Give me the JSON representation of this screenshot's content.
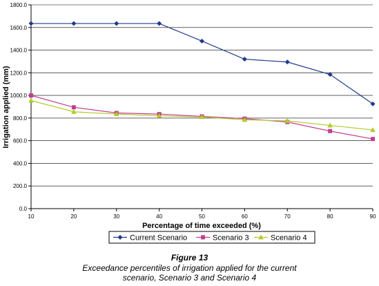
{
  "chart_data": {
    "type": "line",
    "title": "",
    "xlabel": "Percentage of time exceeded (%)",
    "ylabel": "Irrigation applied (mm)",
    "x": [
      10,
      20,
      30,
      40,
      50,
      60,
      70,
      80,
      90
    ],
    "xlim": [
      10,
      90
    ],
    "ylim": [
      0,
      1800
    ],
    "yticks": [
      "0.0",
      "200.0",
      "400.0",
      "600.0",
      "800.0",
      "1000.0",
      "1200.0",
      "1400.0",
      "1600.0",
      "1800.0"
    ],
    "grid": "horizontal",
    "legend_position": "bottom",
    "series": [
      {
        "name": "Current Scenario",
        "color": "#1f3a8a",
        "marker": "diamond",
        "values": [
          1635,
          1635,
          1635,
          1635,
          1480,
          1320,
          1295,
          1185,
          925
        ]
      },
      {
        "name": "Scenario 3",
        "color": "#c0408f",
        "marker": "square",
        "values": [
          1000,
          895,
          845,
          835,
          815,
          795,
          765,
          685,
          615
        ]
      },
      {
        "name": "Scenario 4",
        "color": "#b5c92b",
        "marker": "triangle",
        "values": [
          955,
          855,
          835,
          820,
          810,
          785,
          775,
          735,
          695
        ]
      }
    ]
  },
  "caption": {
    "figure_label": "Figure 13",
    "text": "Exceedance percentiles of irrigation applied for the current scenario, Scenario 3 and Scenario 4"
  }
}
